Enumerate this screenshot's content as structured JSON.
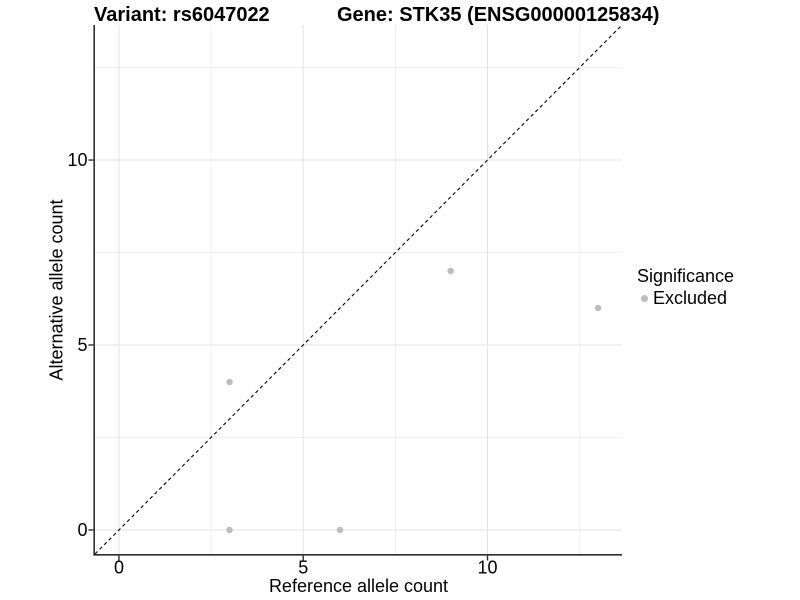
{
  "figure_title": {
    "left": "Variant: rs6047022",
    "right": "Gene: STK35 (ENSG00000125834)"
  },
  "chart_data": {
    "type": "scatter",
    "title": "Variant: rs6047022    Gene: STK35 (ENSG00000125834)",
    "xlabel": "Reference allele count",
    "ylabel": "Alternative allele count",
    "xlim": [
      -0.65,
      13.65
    ],
    "ylim": [
      -0.65,
      13.65
    ],
    "x_ticks": [
      0,
      5,
      10
    ],
    "y_ticks": [
      0,
      5,
      10
    ],
    "x_minor": [
      2.5,
      7.5,
      12.5
    ],
    "y_minor": [
      2.5,
      7.5,
      12.5
    ],
    "grid": true,
    "identity_line": {
      "slope": 1,
      "intercept": 0,
      "style": "dashed"
    },
    "series": [
      {
        "name": "Excluded",
        "marker": "circle",
        "color": "#bdbdbd",
        "points": [
          [
            3,
            0
          ],
          [
            3,
            4
          ],
          [
            6,
            0
          ],
          [
            9,
            7
          ],
          [
            13,
            6
          ]
        ]
      }
    ],
    "legend": {
      "title": "Significance",
      "position": "right",
      "items": [
        {
          "label": "Excluded",
          "color": "#bdbdbd"
        }
      ]
    }
  },
  "style": {
    "background": "#ffffff",
    "grid_major": "#e3e3e3",
    "grid_minor": "#f0f0f0",
    "axis_line": "#2f2f2f",
    "tick_color": "#2f2f2f",
    "text_color": "#000000",
    "identity_color": "#000000",
    "point_radius": 3.2
  }
}
